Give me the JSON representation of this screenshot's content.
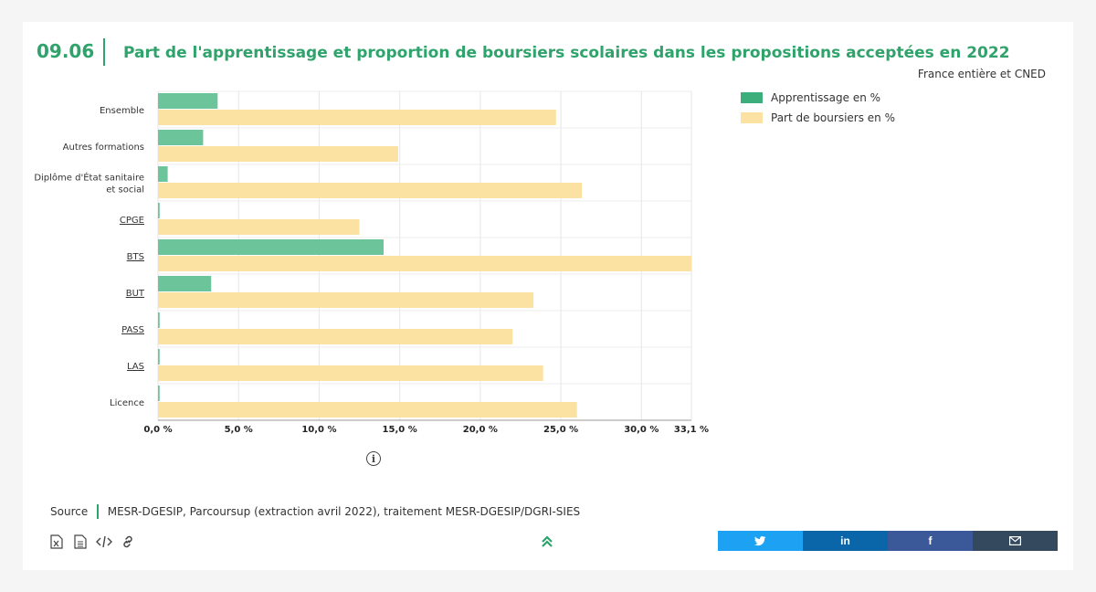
{
  "header": {
    "number": "09.06",
    "title": "Part de l'apprentissage et proportion de boursiers scolaires dans les propositions acceptées en 2022",
    "scope": "France entière et CNED"
  },
  "legend": {
    "items": [
      {
        "label": "Apprentissage en %",
        "color": "#3bae7c"
      },
      {
        "label": "Part de boursiers en %",
        "color": "#fce2a2"
      }
    ]
  },
  "chart_data": {
    "type": "bar",
    "orientation": "horizontal",
    "categories": [
      [
        "Ensemble"
      ],
      [
        "Autres formations"
      ],
      [
        "Diplôme d'État sanitaire",
        "et social"
      ],
      [
        "CPGE"
      ],
      [
        "BTS"
      ],
      [
        "BUT"
      ],
      [
        "PASS"
      ],
      [
        "LAS"
      ],
      [
        "Licence"
      ]
    ],
    "series": [
      {
        "name": "Apprentissage en %",
        "color": "#6cc49a",
        "values": [
          3.7,
          2.8,
          0.6,
          0.1,
          14.0,
          3.3,
          0.1,
          0.1,
          0.1
        ]
      },
      {
        "name": "Part de boursiers en %",
        "color": "#fce2a2",
        "values": [
          24.7,
          14.9,
          26.3,
          12.5,
          33.1,
          23.3,
          22.0,
          23.9,
          26.0
        ]
      }
    ],
    "x_ticks": [
      "0,0 %",
      "5,0 %",
      "10,0 %",
      "15,0 %",
      "20,0 %",
      "25,0 %",
      "30,0 %",
      "33,1 %"
    ],
    "x_tick_values": [
      0,
      5,
      10,
      15,
      20,
      25,
      30,
      33.1
    ],
    "xlim": [
      0,
      33.1
    ],
    "grid": true,
    "legend_position": "top-right"
  },
  "info": {
    "icon": "info-icon"
  },
  "source": {
    "label": "Source",
    "text": "MESR-DGESIP, Parcoursup (extraction avril 2022), traitement MESR-DGESIP/DGRI-SIES"
  },
  "tools": [
    {
      "name": "excel-download-icon"
    },
    {
      "name": "document-icon"
    },
    {
      "name": "embed-code-icon"
    },
    {
      "name": "link-icon"
    }
  ],
  "share": [
    {
      "name": "twitter",
      "color": "#1da1f2"
    },
    {
      "name": "linkedin",
      "color": "#0a66a8"
    },
    {
      "name": "facebook",
      "color": "#3b5998"
    },
    {
      "name": "email",
      "color": "#34495e"
    }
  ]
}
